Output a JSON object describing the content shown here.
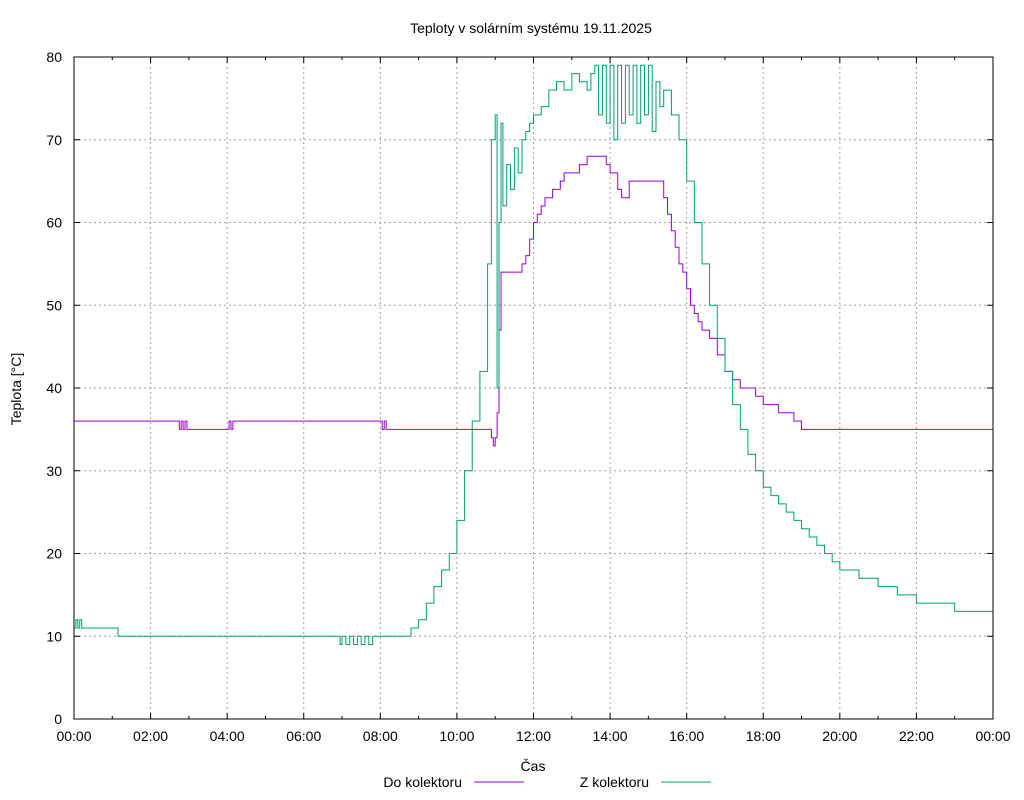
{
  "chart_data": {
    "type": "line",
    "title": "Teploty v solárním systému 19.11.2025",
    "xlabel": "Čas",
    "ylabel": "Teplota [°C]",
    "xlim": [
      0,
      24
    ],
    "ylim": [
      0,
      80
    ],
    "grid": true,
    "legend_position": "bottom",
    "x_ticks": [
      {
        "v": 0,
        "label": "00:00"
      },
      {
        "v": 2,
        "label": "02:00"
      },
      {
        "v": 4,
        "label": "04:00"
      },
      {
        "v": 6,
        "label": "06:00"
      },
      {
        "v": 8,
        "label": "08:00"
      },
      {
        "v": 10,
        "label": "10:00"
      },
      {
        "v": 12,
        "label": "12:00"
      },
      {
        "v": 14,
        "label": "14:00"
      },
      {
        "v": 16,
        "label": "16:00"
      },
      {
        "v": 18,
        "label": "18:00"
      },
      {
        "v": 20,
        "label": "20:00"
      },
      {
        "v": 22,
        "label": "22:00"
      },
      {
        "v": 24,
        "label": "00:00"
      }
    ],
    "y_ticks": [
      {
        "v": 0,
        "label": "0"
      },
      {
        "v": 10,
        "label": "10"
      },
      {
        "v": 20,
        "label": "20"
      },
      {
        "v": 30,
        "label": "30"
      },
      {
        "v": 40,
        "label": "40"
      },
      {
        "v": 50,
        "label": "50"
      },
      {
        "v": 60,
        "label": "60"
      },
      {
        "v": 70,
        "label": "70"
      },
      {
        "v": 80,
        "label": "80"
      }
    ],
    "series": [
      {
        "name": "Do kolektoru",
        "color": "#9400d3",
        "x": [
          0,
          2.7,
          2.75,
          2.8,
          2.85,
          2.9,
          2.95,
          3.0,
          4.0,
          4.05,
          4.1,
          4.15,
          4.2,
          8.0,
          8.05,
          8.1,
          8.15,
          8.2,
          10.0,
          10.9,
          10.95,
          11.0,
          11.05,
          11.1,
          11.15,
          11.2,
          11.6,
          11.7,
          11.8,
          11.9,
          12.0,
          12.1,
          12.2,
          12.3,
          12.4,
          12.5,
          12.6,
          12.7,
          12.8,
          13.0,
          13.2,
          13.4,
          13.6,
          13.8,
          13.9,
          14.0,
          14.2,
          14.3,
          14.5,
          14.6,
          15.0,
          15.3,
          15.4,
          15.5,
          15.6,
          15.7,
          15.8,
          15.9,
          16.0,
          16.1,
          16.2,
          16.3,
          16.4,
          16.6,
          16.8,
          17.0,
          17.2,
          17.4,
          17.6,
          17.8,
          18.0,
          18.2,
          18.4,
          18.6,
          18.8,
          19.0,
          20.0,
          22.0,
          24.0
        ],
        "values": [
          36,
          36,
          35,
          36,
          35,
          36,
          35,
          35,
          35,
          36,
          35,
          36,
          36,
          36,
          35,
          36,
          35,
          35,
          35,
          34,
          33,
          34,
          37,
          47,
          54,
          54,
          54,
          55,
          56,
          58,
          60,
          61,
          62,
          63,
          63,
          64,
          64,
          65,
          66,
          66,
          67,
          68,
          68,
          68,
          67,
          66,
          64,
          63,
          65,
          65,
          65,
          65,
          63,
          61,
          59,
          57,
          55,
          54,
          52,
          50,
          49,
          48,
          47,
          46,
          44,
          42,
          41,
          40,
          40,
          39,
          38,
          38,
          37,
          37,
          36,
          35,
          35,
          35,
          35
        ]
      },
      {
        "name": "Z kolektoru",
        "color": "#009e73",
        "x": [
          0,
          0.05,
          0.1,
          0.15,
          0.2,
          0.25,
          1.1,
          1.15,
          6.9,
          6.95,
          7.0,
          7.1,
          7.2,
          7.3,
          7.4,
          7.5,
          7.6,
          7.7,
          7.8,
          8.0,
          8.5,
          8.8,
          9.0,
          9.2,
          9.4,
          9.6,
          9.8,
          10.0,
          10.2,
          10.4,
          10.6,
          10.8,
          10.9,
          11.0,
          11.05,
          11.1,
          11.15,
          11.2,
          11.3,
          11.4,
          11.5,
          11.6,
          11.7,
          11.8,
          11.9,
          12.0,
          12.2,
          12.4,
          12.6,
          12.8,
          13.0,
          13.2,
          13.4,
          13.5,
          13.6,
          13.7,
          13.8,
          13.9,
          14.0,
          14.1,
          14.2,
          14.3,
          14.4,
          14.5,
          14.6,
          14.7,
          14.8,
          14.9,
          15.0,
          15.1,
          15.2,
          15.3,
          15.4,
          15.6,
          15.8,
          16.0,
          16.2,
          16.4,
          16.6,
          16.8,
          17.0,
          17.2,
          17.4,
          17.6,
          17.8,
          18.0,
          18.2,
          18.4,
          18.6,
          18.8,
          19.0,
          19.2,
          19.4,
          19.6,
          19.8,
          20.0,
          20.5,
          21.0,
          21.5,
          22.0,
          22.5,
          23.0,
          23.4,
          24.0
        ],
        "values": [
          11,
          12,
          11,
          12,
          11,
          11,
          11,
          10,
          10,
          9,
          10,
          9,
          10,
          9,
          10,
          9,
          10,
          9,
          10,
          10,
          10,
          11,
          12,
          14,
          16,
          18,
          20,
          24,
          30,
          36,
          42,
          55,
          70,
          73,
          40,
          60,
          72,
          62,
          67,
          64,
          69,
          66,
          70,
          71,
          72,
          73,
          74,
          76,
          77,
          76,
          78,
          77,
          76,
          78,
          79,
          73,
          79,
          72,
          79,
          70,
          79,
          72,
          79,
          73,
          79,
          72,
          79,
          73,
          79,
          71,
          77,
          74,
          76,
          73,
          70,
          65,
          60,
          55,
          50,
          46,
          42,
          38,
          35,
          32,
          30,
          28,
          27,
          26,
          25,
          24,
          23,
          22,
          21,
          20,
          19,
          18,
          17,
          16,
          15,
          14,
          14,
          13,
          13,
          12
        ]
      }
    ]
  }
}
